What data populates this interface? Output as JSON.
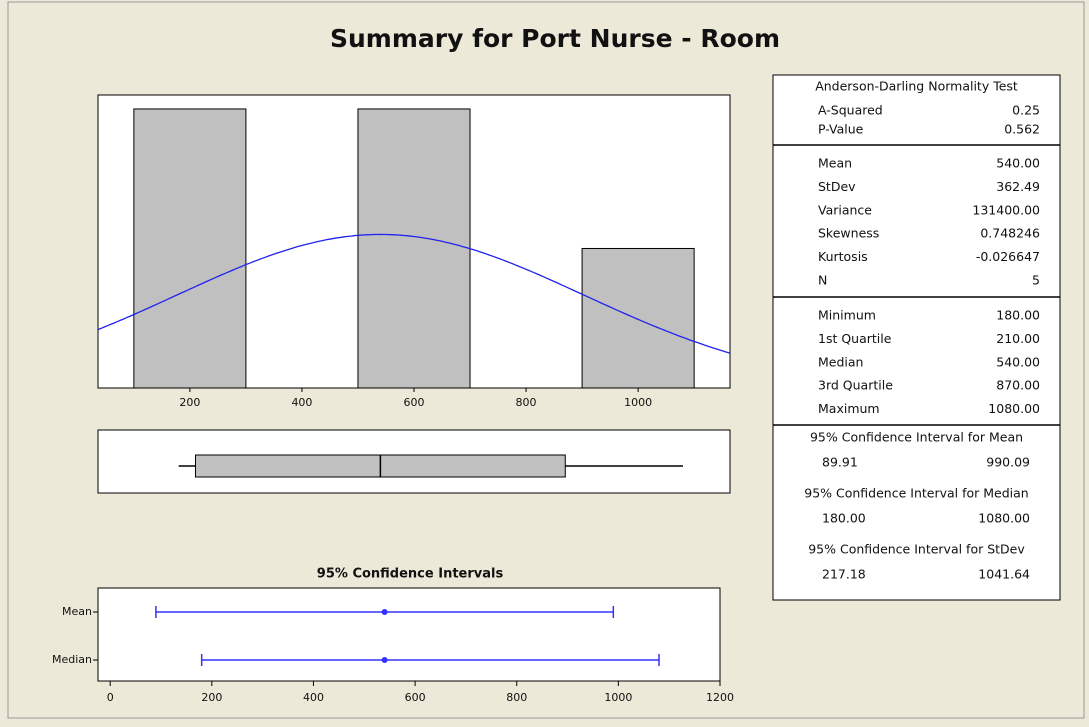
{
  "title": "Summary for Port Nurse - Room",
  "chart_data": [
    {
      "type": "histogram",
      "bins": [
        100,
        300,
        500,
        700,
        900,
        1100
      ],
      "counts": [
        2,
        0,
        2,
        0,
        1
      ],
      "color": "#c0c0c0",
      "xlim": [
        36,
        1164
      ],
      "ylim": [
        0,
        2.1
      ],
      "xticks": [
        200,
        400,
        600,
        800,
        1000
      ],
      "fit": {
        "mean": 540,
        "stdev": 362.49,
        "color": "#2222ee"
      }
    },
    {
      "type": "box",
      "min": 180,
      "q1": 210,
      "median": 540,
      "q3": 870,
      "max": 1080,
      "color": "#c0c0c0",
      "xlim": [
        36,
        1164
      ]
    },
    {
      "type": "interval",
      "title": "95% Confidence Intervals",
      "categories": [
        "Mean",
        "Median"
      ],
      "lower": [
        89.91,
        180
      ],
      "estimate": [
        540,
        540
      ],
      "upper": [
        990.09,
        1080
      ],
      "color": "#3333ff",
      "xlim": [
        -24,
        1200
      ],
      "xticks": [
        0,
        200,
        400,
        600,
        800,
        1000,
        1200
      ]
    }
  ],
  "stats": {
    "sections": [
      {
        "title": "Anderson-Darling Normality Test",
        "rows": [
          [
            "A-Squared",
            "0.25"
          ],
          [
            "P-Value",
            "0.562"
          ]
        ]
      },
      {
        "rows": [
          [
            "Mean",
            "540.00"
          ],
          [
            "StDev",
            "362.49"
          ],
          [
            "Variance",
            "131400.00"
          ],
          [
            "Skewness",
            "0.748246"
          ],
          [
            "Kurtosis",
            "-0.026647"
          ],
          [
            "N",
            "5"
          ]
        ]
      },
      {
        "rows": [
          [
            "Minimum",
            "180.00"
          ],
          [
            "1st Quartile",
            "210.00"
          ],
          [
            "Median",
            "540.00"
          ],
          [
            "3rd Quartile",
            "870.00"
          ],
          [
            "Maximum",
            "1080.00"
          ]
        ]
      },
      {
        "intervals": [
          {
            "title": "95% Confidence Interval for Mean",
            "low": "89.91",
            "high": "990.09"
          },
          {
            "title": "95% Confidence Interval for Median",
            "low": "180.00",
            "high": "1080.00"
          },
          {
            "title": "95% Confidence Interval for StDev",
            "low": "217.18",
            "high": "1041.64"
          }
        ]
      }
    ]
  }
}
